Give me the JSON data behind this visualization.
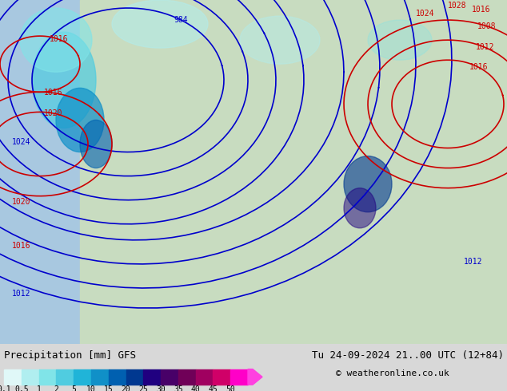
{
  "title_left": "Precipitation [mm] GFS",
  "title_right": "Tu 24-09-2024 21..00 UTC (12+84)",
  "copyright": "© weatheronline.co.uk",
  "colorbar_values": [
    0.1,
    0.5,
    1,
    2,
    5,
    10,
    15,
    20,
    25,
    30,
    35,
    40,
    45,
    50
  ],
  "colorbar_colors": [
    "#e0f8f8",
    "#b0eef0",
    "#80e4e8",
    "#50cce0",
    "#20b4d8",
    "#1090c8",
    "#0060b0",
    "#003890",
    "#200080",
    "#480068",
    "#700058",
    "#a00060",
    "#d00068",
    "#ff00c8",
    "#ff40e0"
  ],
  "bg_color": "#d8d8d8",
  "map_bg": "#c8dcc8",
  "figwidth": 6.34,
  "figheight": 4.9
}
